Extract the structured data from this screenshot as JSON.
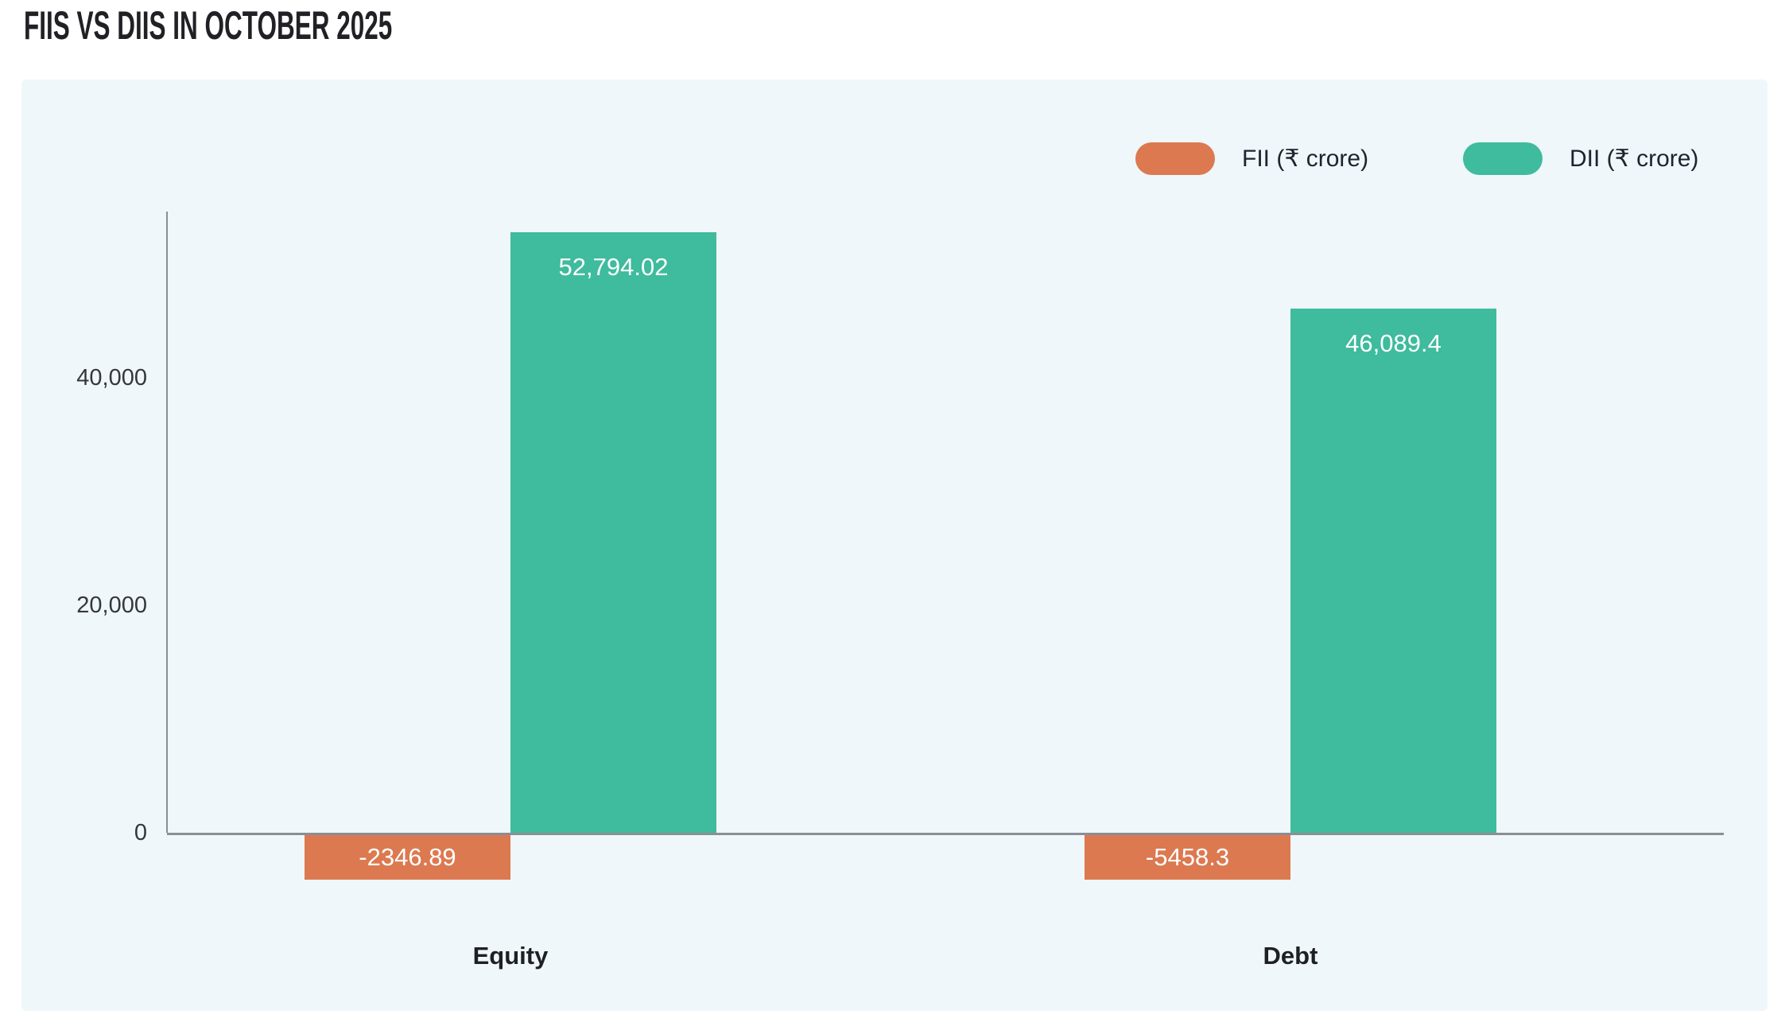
{
  "title": "FIIS VS DIIS IN OCTOBER 2025",
  "panel": {
    "background": "#EFF7FA"
  },
  "legend": {
    "position": "top-right",
    "items": [
      {
        "label": "FII (₹ crore)",
        "color": "#DC7950"
      },
      {
        "label": "DII (₹ crore)",
        "color": "#3FBB9D"
      }
    ]
  },
  "chart_data": {
    "type": "bar",
    "categories": [
      "Equity",
      "Debt"
    ],
    "series": [
      {
        "name": "FII (₹ crore)",
        "color": "#DC7950",
        "values": [
          -2346.89,
          -5458.3
        ],
        "value_labels": [
          "-2346.89",
          "-5458.3"
        ]
      },
      {
        "name": "DII (₹ crore)",
        "color": "#3FBB9D",
        "values": [
          52794.02,
          46089.4
        ],
        "value_labels": [
          "52,794.02",
          "46,089.4"
        ]
      }
    ],
    "y_axis": {
      "ticks": [
        {
          "value": 0,
          "label": "0"
        },
        {
          "value": 20000,
          "label": "20,000"
        },
        {
          "value": 40000,
          "label": "40,000"
        }
      ],
      "range": [
        -8000,
        54600
      ]
    },
    "grid": false,
    "value_label_color": "#FFFFFF",
    "axis_color": "#8B8E94"
  }
}
